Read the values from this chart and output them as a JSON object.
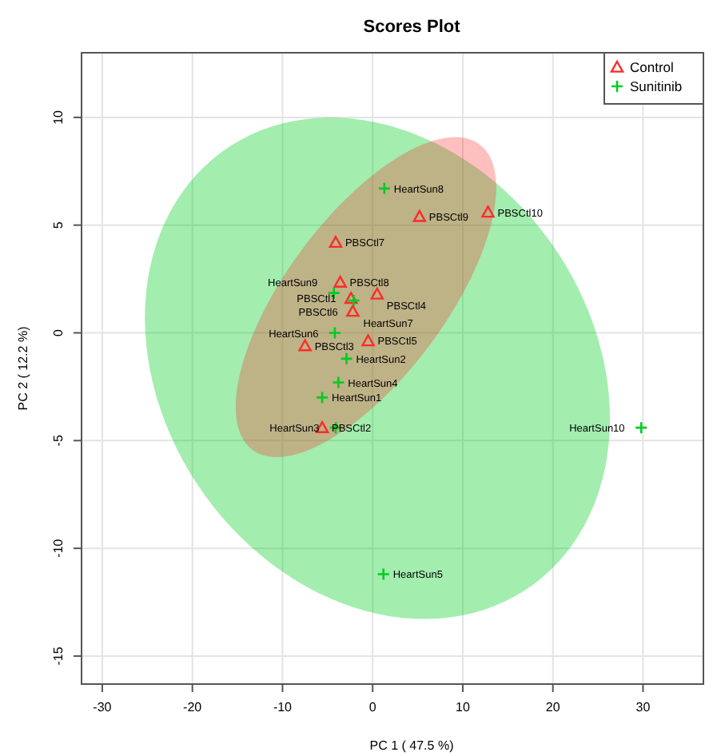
{
  "chart_data": {
    "type": "scatter",
    "title": "Scores Plot",
    "xlabel": "PC 1 ( 47.5 %)",
    "ylabel": "PC 2 ( 12.2 %)",
    "xlim": [
      -32.3,
      36.7
    ],
    "ylim": [
      -16.3,
      13
    ],
    "xticks": [
      -30,
      -20,
      -10,
      0,
      10,
      20,
      30
    ],
    "yticks": [
      -15,
      -10,
      -5,
      0,
      5,
      10
    ],
    "grid": true,
    "legend": "top right",
    "series": [
      {
        "name": "Control",
        "color": "#ff2a2a",
        "marker": "triangle",
        "x": [
          12.8,
          5.2,
          -4.1,
          -3.6,
          0.5,
          -2.4,
          -2.2,
          -0.5,
          -7.5,
          -5.6
        ],
        "values": [
          5.6,
          5.4,
          4.2,
          2.35,
          1.8,
          1.6,
          1.0,
          -0.37,
          -0.6,
          -4.4
        ]
      },
      {
        "name": "Sunitinib",
        "color": "#00cc22",
        "marker": "cross",
        "x": [
          1.3,
          -4.3,
          -2.1,
          -4.2,
          -2.9,
          -3.8,
          -5.6,
          -4.1,
          29.8,
          1.2
        ],
        "values": [
          6.7,
          1.85,
          1.5,
          0.0,
          -1.2,
          -2.3,
          -3.0,
          -4.4,
          -4.4,
          -11.2
        ]
      }
    ],
    "annotations": [
      {
        "text": "PBSCtl10",
        "x": 12.8,
        "y": 5.6
      },
      {
        "text": "PBSCtl9",
        "x": 5.2,
        "y": 5.4
      },
      {
        "text": "PBSCtl7",
        "x": -4.1,
        "y": 4.2
      },
      {
        "text": "PBSCtl8",
        "x": -3.6,
        "y": 2.35
      },
      {
        "text": "PBSCtl4",
        "x": 0.5,
        "y": 1.8
      },
      {
        "text": "PBSCtl1",
        "x": -2.4,
        "y": 1.6
      },
      {
        "text": "PBSCtl6",
        "x": -2.2,
        "y": 1.0
      },
      {
        "text": "PBSCtl5",
        "x": -0.5,
        "y": -0.37
      },
      {
        "text": "PBSCtl3",
        "x": -7.5,
        "y": -0.6
      },
      {
        "text": "PBSCtl2",
        "x": -5.6,
        "y": -4.4
      },
      {
        "text": "HeartSun8",
        "x": 1.3,
        "y": 6.7
      },
      {
        "text": "HeartSun9",
        "x": -4.3,
        "y": 1.85
      },
      {
        "text": "HeartSun7",
        "x": -2.1,
        "y": 1.5
      },
      {
        "text": "HeartSun6",
        "x": -4.2,
        "y": 0.0
      },
      {
        "text": "HeartSun2",
        "x": -2.9,
        "y": -1.2
      },
      {
        "text": "HeartSun4",
        "x": -3.8,
        "y": -2.3
      },
      {
        "text": "HeartSun1",
        "x": -5.6,
        "y": -3.0
      },
      {
        "text": "HeartSun3",
        "x": -4.1,
        "y": -4.4
      },
      {
        "text": "HeartSun10",
        "x": 29.8,
        "y": -4.4
      },
      {
        "text": "HeartSun5",
        "x": 1.2,
        "y": -11.2
      }
    ]
  }
}
